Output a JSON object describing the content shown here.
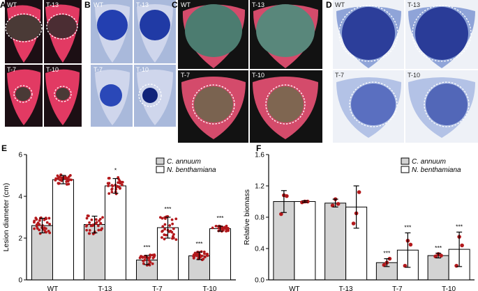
{
  "panels": {
    "A": {
      "letter": "A",
      "labels": [
        "WT",
        "T-13",
        "T-7",
        "T-10"
      ],
      "colors": {
        "bg": "#1c0f14",
        "leaf": "#e23a63",
        "lesion": "#4a3a36"
      }
    },
    "B": {
      "letter": "B",
      "labels": [
        "WT",
        "T-13",
        "T-7",
        "T-10"
      ],
      "colors": {
        "bg": "#a9b9db",
        "leaf": "#cfd6ec",
        "lesion": "#233fb0"
      }
    },
    "C": {
      "letter": "C",
      "labels": [
        "WT",
        "T-13",
        "T-7",
        "T-10"
      ],
      "colors": {
        "bg": "#121212",
        "leaf": "#d44b6b",
        "lesion": "#4c7c70"
      }
    },
    "D": {
      "letter": "D",
      "labels": [
        "WT",
        "T-13",
        "T-7",
        "T-10"
      ],
      "colors": {
        "bg": "#eef1f7",
        "leaf": "#8fa4d8",
        "lesion": "#2c3e9a"
      }
    }
  },
  "chart_data": [
    {
      "panel": "E",
      "type": "bar",
      "ylabel": "Lesion diameter (cm)",
      "xlabel": "",
      "ylim": [
        0,
        6
      ],
      "yticks": [
        "0",
        "2",
        "4",
        "6"
      ],
      "categories": [
        "WT",
        "T-13",
        "T-7",
        "T-10"
      ],
      "legend": [
        "C. annuum",
        "N. benthamiana"
      ],
      "series": [
        {
          "name": "C. annuum",
          "values": [
            2.6,
            2.65,
            0.95,
            1.15
          ],
          "errors": [
            0.35,
            0.4,
            0.22,
            0.18
          ],
          "fill": "#d3d3d3"
        },
        {
          "name": "N. benthamiana",
          "values": [
            4.8,
            4.5,
            2.5,
            2.45
          ],
          "errors": [
            0.2,
            0.35,
            0.5,
            0.12
          ],
          "fill": "#ffffff"
        }
      ],
      "significance": [
        {
          "category": "T-13",
          "series": 1,
          "text": "*"
        },
        {
          "category": "T-7",
          "series": 0,
          "text": "***"
        },
        {
          "category": "T-7",
          "series": 1,
          "text": "***"
        },
        {
          "category": "T-10",
          "series": 0,
          "text": "***"
        },
        {
          "category": "T-10",
          "series": 1,
          "text": "***"
        }
      ]
    },
    {
      "panel": "F",
      "type": "bar",
      "ylabel": "Relative biomass",
      "xlabel": "",
      "ylim": [
        0,
        1.6
      ],
      "yticks": [
        "0.0",
        "0.4",
        "0.8",
        "1.2",
        "1.6"
      ],
      "categories": [
        "WT",
        "T-13",
        "T-7",
        "T-10"
      ],
      "legend": [
        "C. annuum",
        "N. benthamiana"
      ],
      "series": [
        {
          "name": "C. annuum",
          "values": [
            1.0,
            0.98,
            0.22,
            0.31
          ],
          "errors": [
            0.14,
            0.05,
            0.05,
            0.03
          ],
          "fill": "#d3d3d3"
        },
        {
          "name": "N. benthamiana",
          "values": [
            1.0,
            0.93,
            0.38,
            0.39
          ],
          "errors": [
            0.01,
            0.27,
            0.22,
            0.22
          ],
          "fill": "#ffffff"
        }
      ],
      "points": [
        [
          [
            0.84,
            1.08,
            1.07
          ],
          [
            0.99,
            1.0,
            1.0
          ]
        ],
        [
          [
            0.95,
            1.03,
            0.97
          ],
          [
            0.72,
            0.85,
            1.12
          ]
        ],
        [
          [
            0.19,
            0.22,
            0.27
          ],
          [
            0.18,
            0.5,
            0.45
          ]
        ],
        [
          [
            0.3,
            0.33,
            0.31
          ],
          [
            0.18,
            0.55,
            0.44
          ]
        ]
      ],
      "significance": [
        {
          "category": "T-7",
          "series": 0,
          "text": "***"
        },
        {
          "category": "T-7",
          "series": 1,
          "text": "***"
        },
        {
          "category": "T-10",
          "series": 0,
          "text": "***"
        },
        {
          "category": "T-10",
          "series": 1,
          "text": "***"
        }
      ]
    }
  ],
  "colors": {
    "dot": "#b3191c",
    "axis": "#000000",
    "dash": "#ffffff"
  }
}
